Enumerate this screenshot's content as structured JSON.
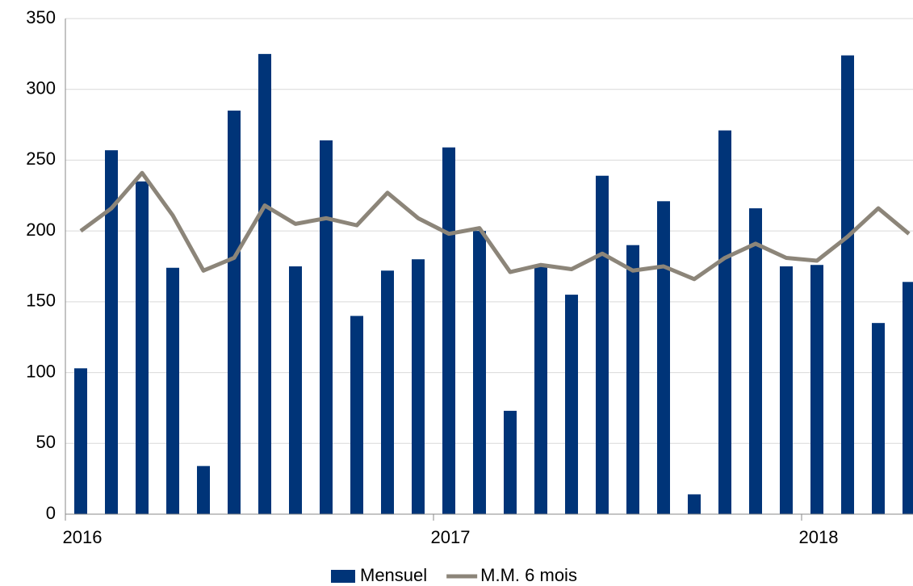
{
  "chart_data": {
    "type": "bar",
    "categories": [
      "2016",
      null,
      null,
      null,
      null,
      null,
      null,
      null,
      null,
      null,
      null,
      null,
      "2017",
      null,
      null,
      null,
      null,
      null,
      null,
      null,
      null,
      null,
      null,
      null,
      "2018",
      null,
      null,
      null
    ],
    "series": [
      {
        "name": "Mensuel",
        "type": "bar",
        "color": "#003478",
        "values": [
          103,
          257,
          235,
          174,
          34,
          285,
          325,
          175,
          264,
          140,
          172,
          180,
          259,
          200,
          73,
          175,
          155,
          239,
          190,
          221,
          14,
          271,
          216,
          175,
          176,
          324,
          135,
          164
        ]
      },
      {
        "name": "M.M. 6 mois",
        "type": "line",
        "color": "#8c8579",
        "values": [
          200,
          216,
          241,
          211,
          172,
          181,
          218,
          205,
          209,
          204,
          227,
          209,
          198,
          202,
          171,
          176,
          173,
          184,
          172,
          175,
          166,
          181,
          191,
          181,
          179,
          196,
          216,
          198
        ]
      }
    ],
    "ylim": [
      0,
      350
    ],
    "yticks": [
      0,
      50,
      100,
      150,
      200,
      250,
      300,
      350
    ],
    "grid": true,
    "legend": "bottom"
  }
}
